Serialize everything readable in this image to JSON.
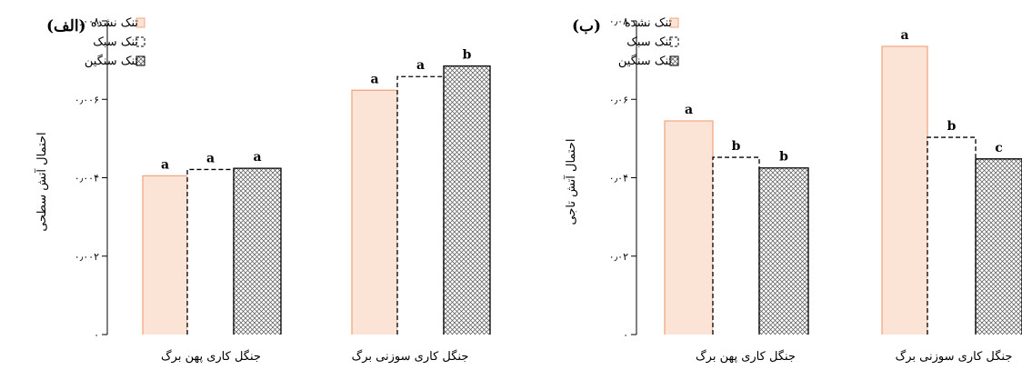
{
  "chart_data": [
    {
      "type": "bar",
      "panel_label": "(الف)",
      "ylabel": "احتمال آتش سطحی",
      "ylim": [
        0,
        0.008
      ],
      "yticks": [
        {
          "value": 0,
          "label": "۰"
        },
        {
          "value": 0.002,
          "label": "۰٫۰۰۲"
        },
        {
          "value": 0.004,
          "label": "۰٫۰۰۴"
        },
        {
          "value": 0.006,
          "label": "۰٫۰۰۶"
        },
        {
          "value": 0.008,
          "label": "۰٫۰۰۸"
        }
      ],
      "categories": [
        "جنگل کاری پهن برگ",
        "جنگل کاری سوزنی برگ"
      ],
      "series": [
        {
          "name": "تنک نشده",
          "values": [
            0.00405,
            0.00623
          ],
          "letters": [
            "a",
            "a"
          ]
        },
        {
          "name": "تنک سبک",
          "values": [
            0.00421,
            0.00658
          ],
          "letters": [
            "a",
            "a"
          ]
        },
        {
          "name": "تنک سنگین",
          "values": [
            0.00424,
            0.00685
          ],
          "letters": [
            "a",
            "b"
          ]
        }
      ],
      "legend": "top-left"
    },
    {
      "type": "bar",
      "panel_label": "(ب)",
      "ylabel": "احتمال آتش تاجی",
      "ylim": [
        0,
        0.08
      ],
      "yticks": [
        {
          "value": 0,
          "label": "۰"
        },
        {
          "value": 0.02,
          "label": "۰٫۰۲"
        },
        {
          "value": 0.04,
          "label": "۰٫۰۴"
        },
        {
          "value": 0.06,
          "label": "۰٫۰۶"
        },
        {
          "value": 0.08,
          "label": "۰٫۰۸"
        }
      ],
      "categories": [
        "جنگل کاری پهن برگ",
        "جنگل کاری سوزنی برگ"
      ],
      "series": [
        {
          "name": "تنک نشده",
          "values": [
            0.0545,
            0.0735
          ],
          "letters": [
            "a",
            "a"
          ]
        },
        {
          "name": "تنک سبک",
          "values": [
            0.0452,
            0.0503
          ],
          "letters": [
            "b",
            "b"
          ]
        },
        {
          "name": "تنک سنگین",
          "values": [
            0.0425,
            0.0448
          ],
          "letters": [
            "b",
            "c"
          ]
        }
      ],
      "legend": "top-left"
    }
  ],
  "colors": {
    "unthinned_fill": "#fbe3d6",
    "unthinned_stroke": "#f2a783",
    "axis": "#000000",
    "hatch": "#555555"
  }
}
